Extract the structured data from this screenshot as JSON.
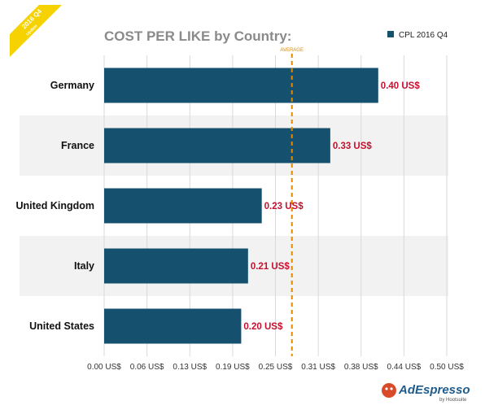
{
  "badge": {
    "line1": "2016 Q4",
    "line2": "Update",
    "color": "#f5d200"
  },
  "brand": {
    "name": "AdEspresso",
    "sub": "by Hootsuite"
  },
  "chart_data": {
    "type": "bar",
    "orientation": "horizontal",
    "title": "COST PER LIKE by Country:",
    "categories": [
      "Germany",
      "France",
      "United Kingdom",
      "Italy",
      "United States"
    ],
    "series": [
      {
        "name": "CPL 2016 Q4",
        "values": [
          0.4,
          0.33,
          0.23,
          0.21,
          0.2
        ],
        "color": "#16506f"
      }
    ],
    "data_labels": [
      "0.40 US$",
      "0.33 US$",
      "0.23 US$",
      "0.21 US$",
      "0.20 US$"
    ],
    "xlim": [
      0,
      0.5
    ],
    "x_ticks": [
      0,
      0.0625,
      0.125,
      0.1875,
      0.25,
      0.3125,
      0.375,
      0.4375,
      0.5
    ],
    "x_tick_labels": [
      "0.00 US$",
      "0.06 US$",
      "0.13 US$",
      "0.19 US$",
      "0.25 US$",
      "0.31 US$",
      "0.38 US$",
      "0.44 US$",
      "0.50 US$"
    ],
    "average": {
      "label": "AVERAGE",
      "value": 0.274,
      "color": "#e08a00"
    },
    "grid": true,
    "legend": "top-right",
    "colors": {
      "bar": "#16506f",
      "data_label": "#c8102e",
      "band": "#f2f2f2",
      "grid": "#d9d9d9"
    }
  }
}
